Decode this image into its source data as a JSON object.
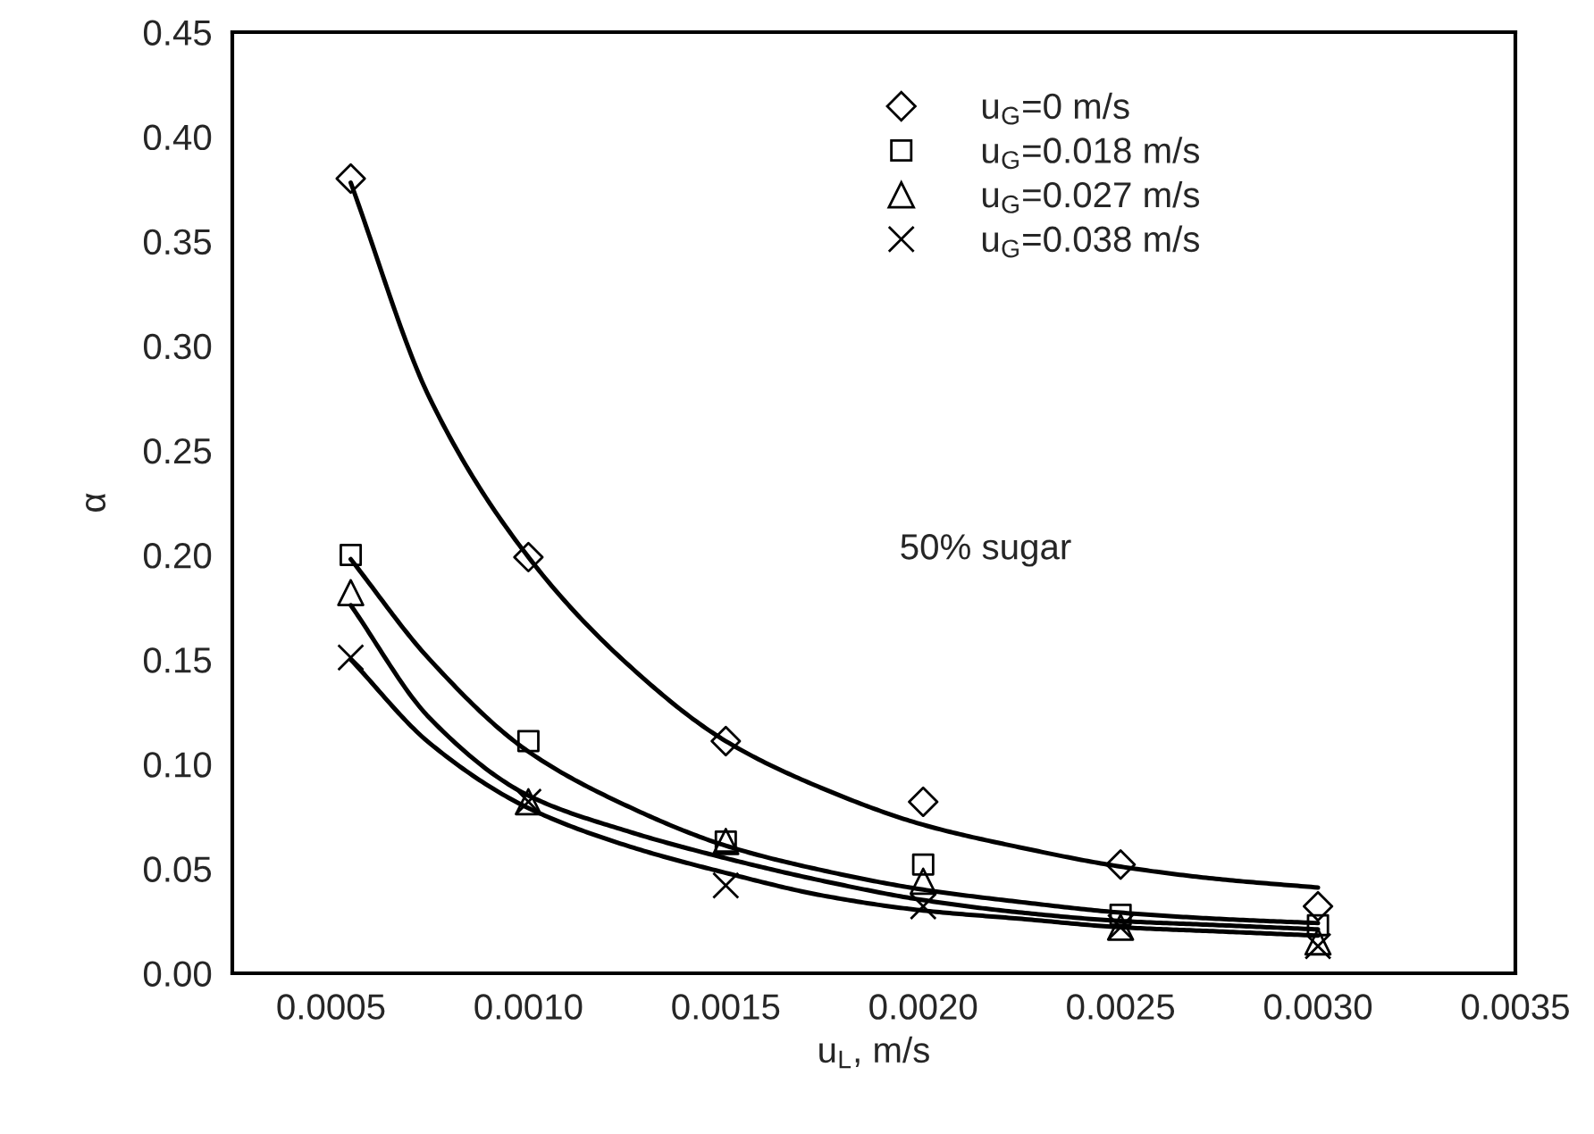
{
  "chart_data": {
    "type": "scatter",
    "xlabel": "u$_{L}$, m/s",
    "ylabel": "α",
    "xlim": [
      0.00025,
      0.0035
    ],
    "ylim": [
      0,
      0.45
    ],
    "xticks": [
      0.0005,
      {
        "value": 0.001,
        "label": "0.0010"
      },
      0.0015,
      {
        "value": 0.002,
        "label": "0.0020"
      },
      0.0025,
      {
        "value": 0.003,
        "label": "0.0030"
      },
      0.0035
    ],
    "yticks": [
      {
        "value": 0,
        "label": "0.00"
      },
      0.05,
      {
        "value": 0.1,
        "label": "0.10"
      },
      0.15,
      {
        "value": 0.2,
        "label": "0.20"
      },
      0.25,
      {
        "value": 0.3,
        "label": "0.30"
      },
      0.35,
      {
        "value": 0.4,
        "label": "0.40"
      },
      0.45
    ],
    "grid": false,
    "legend": "top right",
    "annotations": [
      "50% sugar"
    ],
    "series": [
      {
        "name": "u$_{G}$=0 m/s",
        "marker": "diamond",
        "color": "#000000",
        "x": [
          0.00055,
          0.001,
          0.0015,
          0.002,
          0.0025,
          0.003
        ],
        "values": [
          0.38,
          0.199,
          0.111,
          0.082,
          0.052,
          0.032
        ]
      },
      {
        "name": "u$_{G}$=0.018 m/s",
        "marker": "square",
        "color": "#000000",
        "x": [
          0.00055,
          0.001,
          0.0015,
          0.002,
          0.0025,
          0.003
        ],
        "values": [
          0.2,
          0.111,
          0.063,
          0.052,
          0.028,
          0.023
        ]
      },
      {
        "name": "u$_{G}$=0.027 m/s",
        "marker": "triangle",
        "color": "#000000",
        "x": [
          0.00055,
          0.001,
          0.0015,
          0.002,
          0.0025,
          0.003
        ],
        "values": [
          0.182,
          0.082,
          0.063,
          0.044,
          0.022,
          0.015
        ]
      },
      {
        "name": "u$_{G}$=0.038 m/s",
        "marker": "cross",
        "color": "#000000",
        "x": [
          0.00055,
          0.001,
          0.0015,
          0.002,
          0.0025,
          0.003
        ],
        "values": [
          0.151,
          0.082,
          0.042,
          0.032,
          0.022,
          0.013
        ]
      },
      {
        "type": "line",
        "color": "#000000",
        "x": [
          0.00055,
          0.00075,
          0.001,
          0.00125,
          0.0015,
          0.00175,
          0.002,
          0.00225,
          0.0025,
          0.00275,
          0.003
        ],
        "values": [
          0.378,
          0.275,
          0.199,
          0.148,
          0.111,
          0.088,
          0.071,
          0.06,
          0.051,
          0.045,
          0.041
        ]
      },
      {
        "type": "line",
        "color": "#000000",
        "x": [
          0.00055,
          0.00075,
          0.001,
          0.00125,
          0.0015,
          0.00175,
          0.002,
          0.00225,
          0.0025,
          0.00275,
          0.003
        ],
        "values": [
          0.198,
          0.15,
          0.106,
          0.08,
          0.061,
          0.049,
          0.04,
          0.034,
          0.029,
          0.026,
          0.024
        ]
      },
      {
        "type": "line",
        "color": "#000000",
        "x": [
          0.00055,
          0.00075,
          0.001,
          0.00125,
          0.0015,
          0.00175,
          0.002,
          0.00225,
          0.0025,
          0.00275,
          0.003
        ],
        "values": [
          0.176,
          0.122,
          0.085,
          0.068,
          0.055,
          0.044,
          0.035,
          0.029,
          0.025,
          0.023,
          0.021
        ]
      },
      {
        "type": "line",
        "color": "#000000",
        "x": [
          0.00055,
          0.00075,
          0.001,
          0.00125,
          0.0015,
          0.00175,
          0.002,
          0.00225,
          0.0025,
          0.00275,
          0.003
        ],
        "values": [
          0.15,
          0.11,
          0.079,
          0.061,
          0.048,
          0.037,
          0.03,
          0.026,
          0.022,
          0.02,
          0.018
        ]
      }
    ]
  }
}
